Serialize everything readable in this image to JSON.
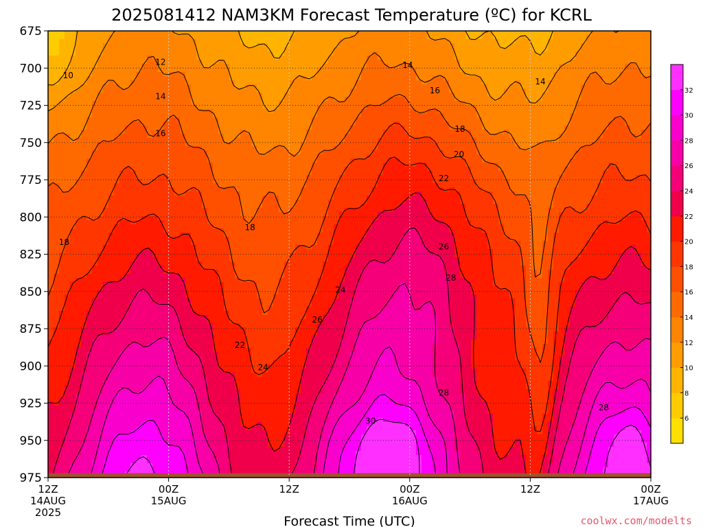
{
  "chart_data": {
    "type": "heatmap",
    "title": "2025081412 NAM3KM Forecast Temperature (ºC) for KCRL",
    "xlabel": "Forecast Time (UTC)",
    "ylabel": "",
    "x_ticks": [
      {
        "hours": 0,
        "lines": [
          "12Z",
          "14AUG",
          "2025"
        ]
      },
      {
        "hours": 12,
        "lines": [
          "00Z",
          "15AUG"
        ]
      },
      {
        "hours": 24,
        "lines": [
          "12Z"
        ]
      },
      {
        "hours": 36,
        "lines": [
          "00Z",
          "16AUG"
        ]
      },
      {
        "hours": 48,
        "lines": [
          "12Z"
        ]
      },
      {
        "hours": 60,
        "lines": [
          "00Z",
          "17AUG"
        ]
      }
    ],
    "xlim": [
      0,
      60
    ],
    "ylim": [
      675,
      975
    ],
    "y_axis_inverted": true,
    "y_ticks": [
      675,
      700,
      725,
      750,
      775,
      800,
      825,
      850,
      875,
      900,
      925,
      950,
      975
    ],
    "grid": true,
    "colorbar": {
      "placement": "right",
      "ticks": [
        6,
        8,
        10,
        12,
        14,
        16,
        18,
        20,
        22,
        24,
        26,
        28,
        30,
        32
      ],
      "levels": [
        4,
        6,
        8,
        10,
        12,
        14,
        16,
        18,
        20,
        22,
        24,
        26,
        28,
        30,
        32,
        34
      ],
      "colors": [
        "#ffe000",
        "#ffcc00",
        "#ffb400",
        "#ff9c00",
        "#ff8400",
        "#ff6a00",
        "#ff5000",
        "#ff3600",
        "#ff1a00",
        "#f0004a",
        "#f50078",
        "#f800a8",
        "#fa00cc",
        "#ff00ff",
        "#ff30ff"
      ]
    },
    "contour_labels": [
      {
        "t": 1.6,
        "p": 817,
        "v": "18"
      },
      {
        "t": 2.0,
        "p": 705,
        "v": "10"
      },
      {
        "t": 11.2,
        "p": 696,
        "v": "12"
      },
      {
        "t": 11.2,
        "p": 719,
        "v": "14"
      },
      {
        "t": 11.2,
        "p": 744,
        "v": "16"
      },
      {
        "t": 20.1,
        "p": 807,
        "v": "18"
      },
      {
        "t": 29.1,
        "p": 849,
        "v": "24"
      },
      {
        "t": 26.8,
        "p": 869,
        "v": "26"
      },
      {
        "t": 19.1,
        "p": 886,
        "v": "22"
      },
      {
        "t": 21.4,
        "p": 901,
        "v": "24"
      },
      {
        "t": 35.8,
        "p": 698,
        "v": "14"
      },
      {
        "t": 38.5,
        "p": 715,
        "v": "16"
      },
      {
        "t": 41.0,
        "p": 741,
        "v": "18"
      },
      {
        "t": 40.9,
        "p": 758,
        "v": "20"
      },
      {
        "t": 39.4,
        "p": 774,
        "v": "22"
      },
      {
        "t": 39.4,
        "p": 820,
        "v": "26"
      },
      {
        "t": 40.1,
        "p": 841,
        "v": "28"
      },
      {
        "t": 39.4,
        "p": 918,
        "v": "28"
      },
      {
        "t": 32.1,
        "p": 937,
        "v": "30"
      },
      {
        "t": 49.0,
        "p": 709,
        "v": "14"
      },
      {
        "t": 55.3,
        "p": 928,
        "v": "28"
      }
    ],
    "terrain": {
      "p_top": 972,
      "color": "#a0522d"
    }
  },
  "footer": {
    "credit": "coolwx.com/modelts"
  },
  "colors": {
    "terrain": "#a0522d",
    "credit": "#e8556b",
    "grid": "#6a6a6a"
  }
}
